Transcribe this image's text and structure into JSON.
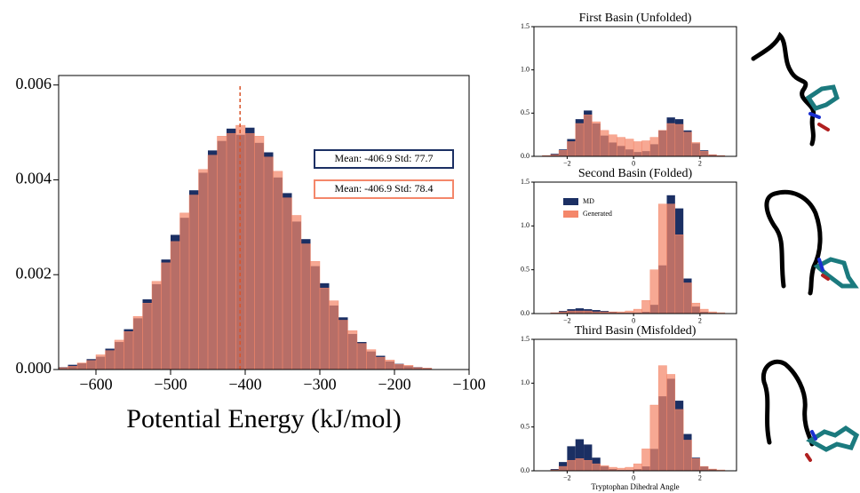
{
  "chart_data": [
    {
      "type": "histogram",
      "xlabel": "Potential Energy (kJ/mol)",
      "bins": [
        -650,
        -637.5,
        -625,
        -612.5,
        -600,
        -587.5,
        -575,
        -562.5,
        -550,
        -537.5,
        -525,
        -512.5,
        -500,
        -487.5,
        -475,
        -462.5,
        -450,
        -437.5,
        -425,
        -412.5,
        -400,
        -387.5,
        -375,
        -362.5,
        -350,
        -337.5,
        -325,
        -312.5,
        -300,
        -287.5,
        -275,
        -262.5,
        -250,
        -237.5,
        -225,
        -212.5,
        -200,
        -187.5,
        -175,
        -162.5,
        -150
      ],
      "series": [
        {
          "color": "#1b2f63",
          "values": [
            5e-05,
            0.0001,
            0.00013,
            0.00022,
            0.00027,
            0.00044,
            0.00058,
            0.00085,
            0.00108,
            0.00148,
            0.0018,
            0.00232,
            0.00284,
            0.0032,
            0.00378,
            0.00415,
            0.00462,
            0.00482,
            0.00508,
            0.00495,
            0.0051,
            0.00478,
            0.00458,
            0.00405,
            0.00372,
            0.00312,
            0.00275,
            0.00218,
            0.00182,
            0.00135,
            0.0011,
            0.00075,
            0.00058,
            0.00038,
            0.00029,
            0.00017,
            0.00012,
            7e-05,
            5e-05,
            3e-05
          ]
        },
        {
          "color": "#f4876a",
          "values": [
            4e-05,
            7e-05,
            0.00014,
            0.00019,
            0.00031,
            0.0004,
            0.00062,
            0.0008,
            0.00112,
            0.0014,
            0.00186,
            0.00225,
            0.0027,
            0.0033,
            0.00368,
            0.00422,
            0.00452,
            0.00492,
            0.00498,
            0.00515,
            0.00498,
            0.00492,
            0.00448,
            0.00418,
            0.00362,
            0.00325,
            0.00265,
            0.00228,
            0.00172,
            0.00145,
            0.00104,
            0.00082,
            0.00055,
            0.00042,
            0.00026,
            0.0002,
            0.00011,
            9e-05,
            4e-05,
            3e-05
          ]
        }
      ],
      "vline": -406.9,
      "vline_color": "#d9542a",
      "annotations": [
        {
          "text": "Mean: -406.9 Std: 77.7",
          "color": "#1b2f63"
        },
        {
          "text": "Mean: -406.9 Std: 78.4",
          "color": "#f4876a"
        }
      ],
      "xlim": [
        -650,
        -100
      ],
      "xticks": [
        {
          "value": -600,
          "label": "−600"
        },
        {
          "value": -500,
          "label": "−500"
        },
        {
          "value": -400,
          "label": "−400"
        },
        {
          "value": -300,
          "label": "−300"
        },
        {
          "value": -200,
          "label": "−200"
        },
        {
          "value": -100,
          "label": "−100"
        }
      ],
      "ylim": [
        0,
        0.0062
      ],
      "yticks": [
        {
          "value": 0,
          "label": "0.000"
        },
        {
          "value": 0.002,
          "label": "0.002"
        },
        {
          "value": 0.004,
          "label": "0.004"
        },
        {
          "value": 0.006,
          "label": "0.006"
        }
      ]
    },
    {
      "type": "histogram",
      "title": "First Basin (Unfolded)",
      "bins": [
        -3,
        -2.75,
        -2.5,
        -2.25,
        -2,
        -1.75,
        -1.5,
        -1.25,
        -1,
        -0.75,
        -0.5,
        -0.25,
        0,
        0.25,
        0.5,
        0.75,
        1,
        1.25,
        1.5,
        1.75,
        2,
        2.25,
        2.5,
        2.75,
        3
      ],
      "series": [
        {
          "color": "#1b2f63",
          "values": [
            0,
            0.01,
            0.03,
            0.08,
            0.2,
            0.43,
            0.53,
            0.38,
            0.24,
            0.16,
            0.12,
            0.08,
            0.05,
            0.06,
            0.14,
            0.3,
            0.45,
            0.43,
            0.3,
            0.15,
            0.07,
            0.02,
            0.01,
            0
          ]
        },
        {
          "color": "#f4876a",
          "values": [
            0,
            0.01,
            0.02,
            0.07,
            0.17,
            0.38,
            0.48,
            0.4,
            0.3,
            0.25,
            0.22,
            0.2,
            0.17,
            0.18,
            0.22,
            0.3,
            0.38,
            0.37,
            0.28,
            0.16,
            0.06,
            0.02,
            0.01,
            0
          ]
        }
      ],
      "xlim": [
        -3,
        3.1
      ],
      "xticks": [
        {
          "value": -2,
          "label": "−2"
        },
        0,
        2
      ],
      "ylim": [
        0,
        1.5
      ],
      "yticks": [
        {
          "value": 0,
          "label": "0.0"
        },
        {
          "value": 0.5,
          "label": "0.5"
        },
        {
          "value": 1,
          "label": "1.0"
        },
        {
          "value": 1.5,
          "label": "1.5"
        }
      ]
    },
    {
      "type": "histogram",
      "title": "Second Basin (Folded)",
      "bins": [
        -3,
        -2.75,
        -2.5,
        -2.25,
        -2,
        -1.75,
        -1.5,
        -1.25,
        -1,
        -0.75,
        -0.5,
        -0.25,
        0,
        0.25,
        0.5,
        0.75,
        1,
        1.25,
        1.5,
        1.75,
        2,
        2.25,
        2.5,
        2.75,
        3
      ],
      "series": [
        {
          "name": "MD",
          "color": "#1b2f63",
          "values": [
            0,
            0,
            0.01,
            0.03,
            0.05,
            0.06,
            0.05,
            0.04,
            0.03,
            0.02,
            0.01,
            0.01,
            0.01,
            0.02,
            0.1,
            0.55,
            1.35,
            1.2,
            0.4,
            0.08,
            0.02,
            0.01,
            0,
            0
          ]
        },
        {
          "name": "Generated",
          "color": "#f4876a",
          "values": [
            0,
            0,
            0.01,
            0.02,
            0.03,
            0.03,
            0.03,
            0.02,
            0.02,
            0.02,
            0.02,
            0.03,
            0.05,
            0.15,
            0.5,
            1.25,
            1.25,
            0.9,
            0.35,
            0.12,
            0.05,
            0.02,
            0.01,
            0
          ]
        }
      ],
      "legend": "upper left",
      "xlim": [
        -3,
        3.1
      ],
      "xticks": [
        {
          "value": -2,
          "label": "−2"
        },
        0,
        2
      ],
      "ylim": [
        0,
        1.5
      ],
      "yticks": [
        {
          "value": 0,
          "label": "0.0"
        },
        {
          "value": 0.5,
          "label": "0.5"
        },
        {
          "value": 1,
          "label": "1.0"
        },
        {
          "value": 1.5,
          "label": "1.5"
        }
      ]
    },
    {
      "type": "histogram",
      "title": "Third Basin (Misfolded)",
      "xlabel": "Tryptophan Dihedral Angle",
      "bins": [
        -3,
        -2.75,
        -2.5,
        -2.25,
        -2,
        -1.75,
        -1.5,
        -1.25,
        -1,
        -0.75,
        -0.5,
        -0.25,
        0,
        0.25,
        0.5,
        0.75,
        1,
        1.25,
        1.5,
        1.75,
        2,
        2.25,
        2.5,
        2.75,
        3
      ],
      "series": [
        {
          "color": "#1b2f63",
          "values": [
            0,
            0,
            0.02,
            0.1,
            0.28,
            0.36,
            0.3,
            0.15,
            0.05,
            0.02,
            0.01,
            0.01,
            0.02,
            0.05,
            0.25,
            0.85,
            1.05,
            0.8,
            0.42,
            0.15,
            0.05,
            0.02,
            0,
            0
          ]
        },
        {
          "color": "#f4876a",
          "values": [
            0,
            0,
            0.01,
            0.05,
            0.12,
            0.14,
            0.12,
            0.08,
            0.06,
            0.04,
            0.03,
            0.04,
            0.08,
            0.25,
            0.75,
            1.2,
            1.1,
            0.7,
            0.35,
            0.14,
            0.05,
            0.02,
            0.01,
            0
          ]
        }
      ],
      "xlim": [
        -3,
        3.1
      ],
      "xticks": [
        {
          "value": -2,
          "label": "−2"
        },
        0,
        2
      ],
      "ylim": [
        0,
        1.5
      ],
      "yticks": [
        {
          "value": 0,
          "label": "0.0"
        },
        {
          "value": 0.5,
          "label": "0.5"
        },
        {
          "value": 1,
          "label": "1.0"
        },
        {
          "value": 1.5,
          "label": "1.5"
        }
      ]
    }
  ]
}
